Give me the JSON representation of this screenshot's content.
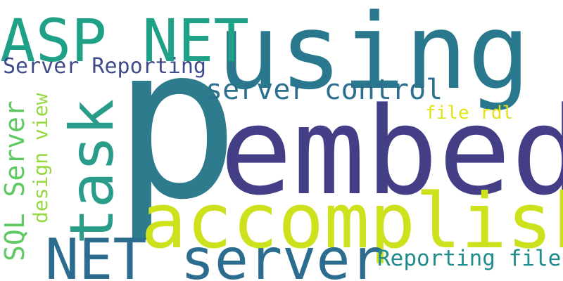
{
  "words": {
    "p": {
      "text": "p",
      "color": "#2e7b8e"
    },
    "embed": {
      "text": "embed",
      "color": "#433e85"
    },
    "using": {
      "text": "using",
      "color": "#2a788e"
    },
    "accomplish": {
      "text": "accomplish",
      "color": "#cde11d"
    },
    "net_server": {
      "text": "NET server",
      "color": "#2c6c8e"
    },
    "asp_net": {
      "text": "ASP NET",
      "color": "#1fa187"
    },
    "task": {
      "text": "task",
      "color": "#2a9d8a"
    },
    "server_control": {
      "text": "server control",
      "color": "#2d708e"
    },
    "server_reporting": {
      "text": "Server Reporting",
      "color": "#3e4a89"
    },
    "sql_server": {
      "text": "SQL Server",
      "color": "#5ec962"
    },
    "design_view": {
      "text": "design view",
      "color": "#95d840"
    },
    "file_rdl": {
      "text": "file rdl",
      "color": "#e2e418"
    },
    "reporting_file": {
      "text": "Reporting file",
      "color": "#228c8d"
    }
  }
}
